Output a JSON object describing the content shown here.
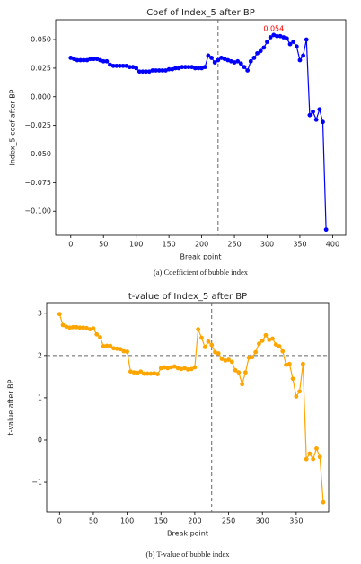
{
  "chart_data": [
    {
      "type": "line",
      "title": "Coef of Index_5 after BP",
      "xlabel": "Break point",
      "ylabel": "Index_5 coef after BP",
      "caption": "(a) Coefficient of bubble index",
      "x": [
        0,
        5,
        10,
        15,
        20,
        25,
        30,
        35,
        40,
        45,
        50,
        55,
        60,
        65,
        70,
        75,
        80,
        85,
        90,
        95,
        100,
        105,
        110,
        115,
        120,
        125,
        130,
        135,
        140,
        145,
        150,
        155,
        160,
        165,
        170,
        175,
        180,
        185,
        190,
        195,
        200,
        205,
        210,
        215,
        220,
        225,
        230,
        235,
        240,
        245,
        250,
        255,
        260,
        265,
        270,
        275,
        280,
        285,
        290,
        295,
        300,
        305,
        310,
        315,
        320,
        325,
        330,
        335,
        340,
        345,
        350,
        355,
        360,
        365,
        370,
        375,
        380,
        385,
        390
      ],
      "series": [
        {
          "name": "Index_5",
          "color": "#0000ff",
          "values": [
            0.034,
            0.033,
            0.032,
            0.032,
            0.032,
            0.032,
            0.033,
            0.033,
            0.033,
            0.032,
            0.031,
            0.031,
            0.028,
            0.027,
            0.027,
            0.027,
            0.027,
            0.027,
            0.026,
            0.026,
            0.025,
            0.022,
            0.022,
            0.022,
            0.022,
            0.023,
            0.023,
            0.023,
            0.023,
            0.023,
            0.024,
            0.024,
            0.025,
            0.025,
            0.026,
            0.026,
            0.026,
            0.026,
            0.025,
            0.025,
            0.025,
            0.026,
            0.036,
            0.034,
            0.03,
            0.032,
            0.034,
            0.033,
            0.032,
            0.031,
            0.03,
            0.031,
            0.029,
            0.026,
            0.023,
            0.031,
            0.034,
            0.038,
            0.04,
            0.043,
            0.048,
            0.052,
            0.054,
            0.053,
            0.053,
            0.052,
            0.051,
            0.046,
            0.048,
            0.044,
            0.032,
            0.036,
            0.05,
            -0.016,
            -0.013,
            -0.02,
            -0.011,
            -0.022,
            -0.116
          ]
        }
      ],
      "xlim": [
        -23,
        420
      ],
      "xticks": [
        0,
        50,
        100,
        150,
        200,
        250,
        300,
        350,
        400
      ],
      "ylim": [
        -0.121,
        0.0673
      ],
      "yticks": [
        {
          "value": -0.1,
          "label": "−0.100"
        },
        {
          "value": -0.075,
          "label": "−0.075"
        },
        {
          "value": -0.05,
          "label": "−0.050"
        },
        {
          "value": -0.025,
          "label": "−0.025"
        },
        {
          "value": 0,
          "label": "0.000"
        },
        {
          "value": 0.025,
          "label": "0.025"
        },
        {
          "value": 0.05,
          "label": "0.050"
        }
      ],
      "vline": 225,
      "annotations": [
        {
          "text": "0.054",
          "x": 310,
          "y": 0.054,
          "color": "#ff0000"
        }
      ]
    },
    {
      "type": "line",
      "title": "t-value of Index_5 after BP",
      "xlabel": "Break point",
      "ylabel": "t-value after BP",
      "caption": "(b) T-value of bubble index",
      "x": [
        0,
        5,
        10,
        15,
        20,
        25,
        30,
        35,
        40,
        45,
        50,
        55,
        60,
        65,
        70,
        75,
        80,
        85,
        90,
        95,
        100,
        105,
        110,
        115,
        120,
        125,
        130,
        135,
        140,
        145,
        150,
        155,
        160,
        165,
        170,
        175,
        180,
        185,
        190,
        195,
        200,
        205,
        210,
        215,
        220,
        225,
        230,
        235,
        240,
        245,
        250,
        255,
        260,
        265,
        270,
        275,
        280,
        285,
        290,
        295,
        300,
        305,
        310,
        315,
        320,
        325,
        330,
        335,
        340,
        345,
        350,
        355,
        360,
        365,
        370,
        375,
        380,
        385,
        390
      ],
      "series": [
        {
          "name": "t-value",
          "color": "#ffa500",
          "values": [
            2.98,
            2.72,
            2.68,
            2.66,
            2.67,
            2.67,
            2.66,
            2.66,
            2.65,
            2.62,
            2.64,
            2.5,
            2.43,
            2.22,
            2.23,
            2.23,
            2.17,
            2.16,
            2.15,
            2.1,
            2.09,
            1.62,
            1.6,
            1.59,
            1.62,
            1.57,
            1.57,
            1.57,
            1.58,
            1.56,
            1.7,
            1.72,
            1.7,
            1.72,
            1.74,
            1.7,
            1.68,
            1.7,
            1.67,
            1.68,
            1.72,
            2.62,
            2.42,
            2.2,
            2.33,
            2.25,
            2.08,
            2.05,
            1.92,
            1.88,
            1.9,
            1.85,
            1.65,
            1.6,
            1.32,
            1.6,
            1.95,
            1.96,
            2.08,
            2.28,
            2.35,
            2.48,
            2.37,
            2.4,
            2.26,
            2.22,
            2.1,
            1.78,
            1.8,
            1.45,
            1.03,
            1.15,
            1.8,
            -0.45,
            -0.32,
            -0.45,
            -0.2,
            -0.4,
            -1.47
          ]
        }
      ],
      "xlim": [
        -19,
        398
      ],
      "xticks": [
        0,
        50,
        100,
        150,
        200,
        250,
        300,
        350
      ],
      "ylim": [
        -1.7,
        3.25
      ],
      "yticks": [
        {
          "value": -1,
          "label": "−1"
        },
        0,
        1,
        2,
        3
      ],
      "vline": 225,
      "hline": 2
    }
  ]
}
